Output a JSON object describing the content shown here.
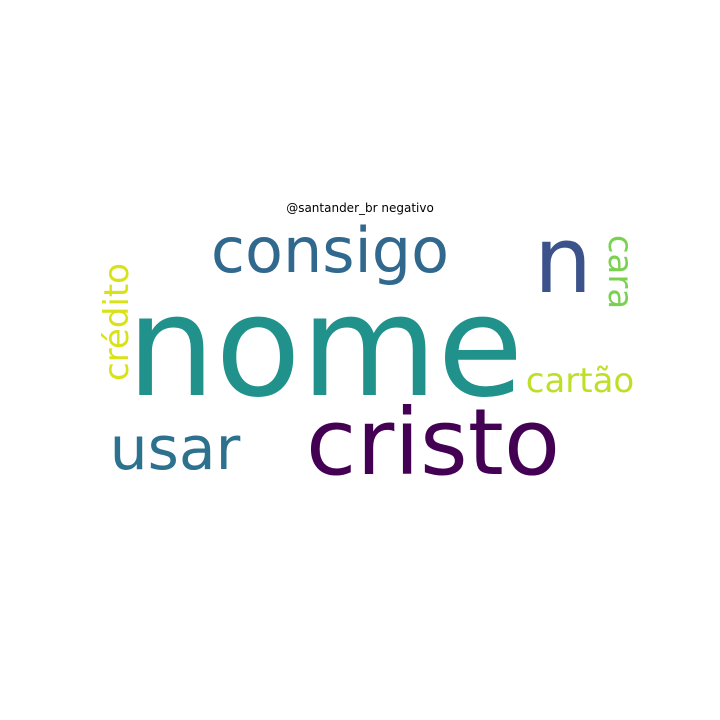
{
  "title": "@santander_br negativo",
  "words": [
    {
      "text": "nome",
      "color": "#21918c",
      "orientation": "horizontal"
    },
    {
      "text": "cristo",
      "color": "#440154",
      "orientation": "horizontal"
    },
    {
      "text": "consigo",
      "color": "#31688e",
      "orientation": "horizontal"
    },
    {
      "text": "usar",
      "color": "#2c728e",
      "orientation": "horizontal"
    },
    {
      "text": "n",
      "color": "#3b528b",
      "orientation": "horizontal"
    },
    {
      "text": "cartão",
      "color": "#bddf26",
      "orientation": "horizontal"
    },
    {
      "text": "crédito",
      "color": "#d8e219",
      "orientation": "vertical"
    },
    {
      "text": "cara",
      "color": "#7ad151",
      "orientation": "vertical"
    }
  ]
}
